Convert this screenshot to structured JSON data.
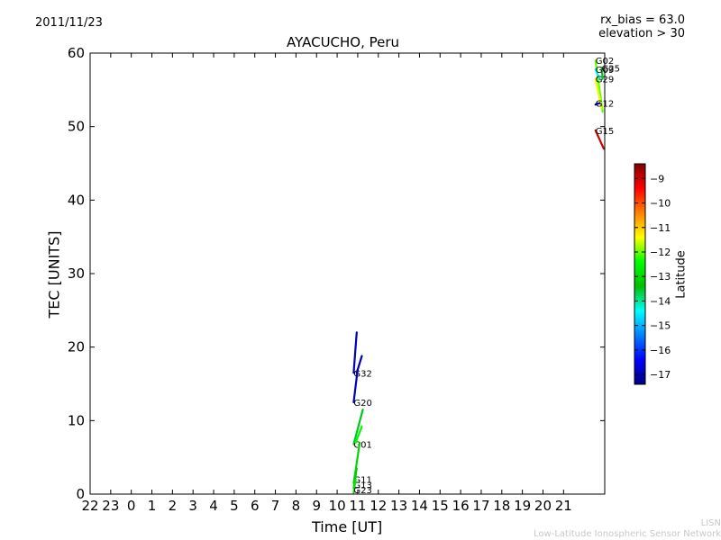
{
  "header": {
    "date": "2011/11/23",
    "title": "AYACUCHO, Peru",
    "note_bias": "rx_bias = 63.0",
    "note_elevation": "elevation > 30"
  },
  "credit": {
    "line1": "LISN",
    "line2": "Low-Latitude Ionospheric Sensor Network"
  },
  "chart_data": {
    "type": "scatter",
    "title": "AYACUCHO, Peru",
    "xlabel": "Time [UT]",
    "ylabel": "TEC [UNITS]",
    "x_tick_labels": [
      "22",
      "23",
      "0",
      "1",
      "2",
      "3",
      "4",
      "5",
      "6",
      "7",
      "8",
      "9",
      "10",
      "11",
      "12",
      "13",
      "14",
      "15",
      "16",
      "17",
      "18",
      "19",
      "20",
      "21"
    ],
    "xlim": [
      0,
      25
    ],
    "ylim": [
      0,
      60
    ],
    "y_ticks": [
      0,
      10,
      20,
      30,
      40,
      50,
      60
    ],
    "grid": false,
    "colorbar": {
      "label": "Latitude",
      "range": [
        -17.4,
        -8.4
      ],
      "ticks": [
        -9,
        -10,
        -11,
        -12,
        -13,
        -14,
        -15,
        -16,
        -17
      ],
      "tick_labels": [
        "−9",
        "−10",
        "−11",
        "−12",
        "−13",
        "−14",
        "−15",
        "−16",
        "−17"
      ],
      "colors": [
        "#00007f",
        "#0000ff",
        "#0080ff",
        "#00ffff",
        "#00c000",
        "#00ff00",
        "#ffff00",
        "#ff8000",
        "#ff0000",
        "#7f0000"
      ]
    },
    "series": [
      {
        "name": "G32",
        "latitude": -17.0,
        "points": [
          [
            12.8,
            16.5
          ],
          [
            12.95,
            22.0
          ]
        ],
        "label_at": [
          12.8,
          16.5
        ]
      },
      {
        "name": "G32",
        "latitude": -17.0,
        "points": [
          [
            12.95,
            16.5
          ],
          [
            13.2,
            18.8
          ]
        ],
        "label_at": null
      },
      {
        "name": "G20",
        "latitude": -17.0,
        "points": [
          [
            12.8,
            12.5
          ],
          [
            13.0,
            17.0
          ]
        ],
        "label_at": [
          12.8,
          12.5
        ]
      },
      {
        "name": "G01",
        "latitude": -13.5,
        "points": [
          [
            12.8,
            6.8
          ],
          [
            13.25,
            11.5
          ]
        ],
        "label_at": [
          12.8,
          6.8
        ]
      },
      {
        "name": "G01",
        "latitude": -12.5,
        "points": [
          [
            12.9,
            7.0
          ],
          [
            13.2,
            9.2
          ]
        ],
        "label_at": null
      },
      {
        "name": "G11",
        "latitude": -13.0,
        "points": [
          [
            12.8,
            1.5
          ],
          [
            13.1,
            7.0
          ]
        ],
        "label_at": [
          12.8,
          2.0
        ]
      },
      {
        "name": "G13",
        "latitude": -13.2,
        "points": [
          [
            12.8,
            0.8
          ],
          [
            12.95,
            3.5
          ]
        ],
        "label_at": [
          12.8,
          1.3
        ]
      },
      {
        "name": "G23",
        "latitude": -12.8,
        "points": [
          [
            12.8,
            0.2
          ],
          [
            12.9,
            2.0
          ]
        ],
        "label_at": [
          12.8,
          0.6
        ]
      },
      {
        "name": "G02",
        "latitude": -12.0,
        "points": [
          [
            24.55,
            59.0
          ],
          [
            24.9,
            52.0
          ]
        ],
        "label_at": [
          24.55,
          59.0
        ]
      },
      {
        "name": "G25",
        "latitude": -13.5,
        "points": [
          [
            24.85,
            58.0
          ],
          [
            24.9,
            56.5
          ]
        ],
        "label_at": [
          24.85,
          58.0
        ]
      },
      {
        "name": "G09",
        "latitude": -14.5,
        "points": [
          [
            24.55,
            57.8
          ],
          [
            24.75,
            56.5
          ]
        ],
        "label_at": [
          24.55,
          57.8
        ]
      },
      {
        "name": "G29",
        "latitude": -11.5,
        "points": [
          [
            24.55,
            56.5
          ],
          [
            24.85,
            52.5
          ]
        ],
        "label_at": [
          24.55,
          56.5
        ]
      },
      {
        "name": "G12",
        "latitude": -17.0,
        "points": [
          [
            24.55,
            53.0
          ],
          [
            24.75,
            53.2
          ]
        ],
        "label_at": [
          24.55,
          53.2
        ]
      },
      {
        "name": "G15",
        "latitude": -9.0,
        "points": [
          [
            24.55,
            49.5
          ],
          [
            24.95,
            47.0
          ]
        ],
        "label_at": [
          24.55,
          49.5
        ]
      }
    ]
  }
}
